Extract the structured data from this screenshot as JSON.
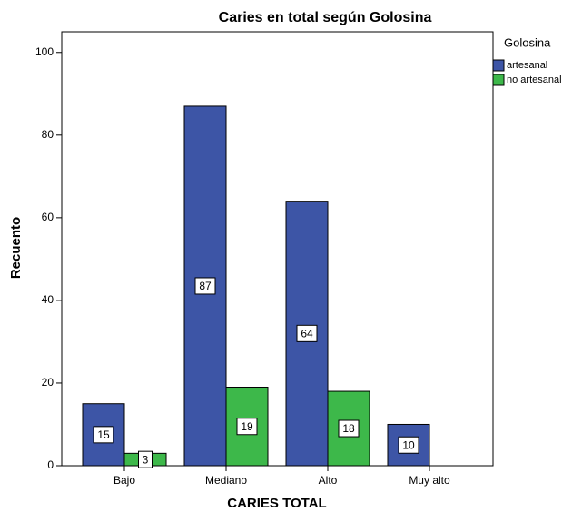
{
  "chart_data": {
    "type": "bar",
    "title": "Caries en total según Golosina",
    "x_label": "CARIES TOTAL",
    "y_label": "Recuento",
    "legend_title": "Golosina",
    "categories": [
      "Bajo",
      "Mediano",
      "Alto",
      "Muy alto"
    ],
    "series": [
      {
        "name": "artesanal",
        "color": "#3d55a6",
        "values": [
          15,
          87,
          64,
          10
        ]
      },
      {
        "name": "no artesanal",
        "color": "#3db84a",
        "values": [
          3,
          19,
          18,
          null
        ]
      }
    ],
    "ylim": [
      0,
      105
    ],
    "yticks": [
      0,
      20,
      40,
      60,
      80,
      100
    ],
    "grid": false,
    "legend": "right"
  }
}
